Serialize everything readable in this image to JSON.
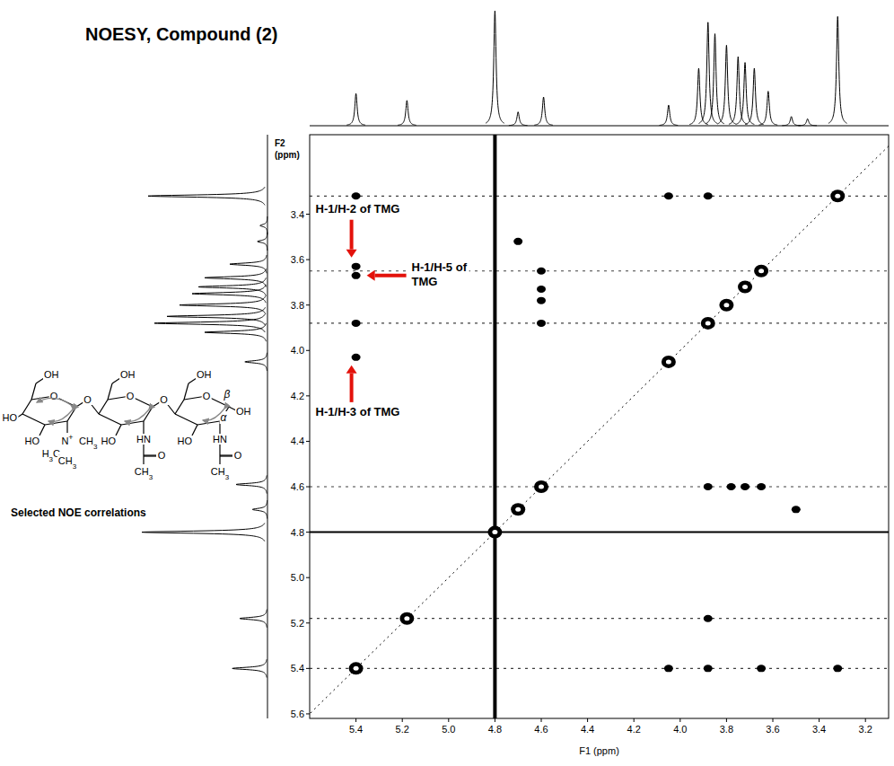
{
  "chart_data": {
    "type": "noesy",
    "title": "NOESY, Compound (2)",
    "x_label": "F1 (ppm)",
    "y_label": "F2 (ppm)",
    "xlim": [
      5.6,
      3.1
    ],
    "xticks": [
      5.4,
      5.2,
      {
        "value": 5,
        "label": "5.0"
      },
      4.8,
      4.6,
      4.4,
      4.2,
      {
        "value": 4,
        "label": "4.0"
      },
      3.8,
      3.6,
      3.4,
      3.2
    ],
    "ylim": [
      3.05,
      5.62
    ],
    "yticks": [
      3.4,
      3.6,
      3.8,
      {
        "value": 4,
        "label": "4.0"
      },
      4.2,
      4.4,
      4.6,
      4.8,
      {
        "value": 5,
        "label": "5.0"
      },
      5.2,
      5.4,
      5.6
    ],
    "peaks": {
      "x": [
        5.4,
        5.18,
        4.8,
        4.7,
        4.6,
        4.05,
        3.88,
        3.8,
        3.72,
        3.65,
        3.32,
        5.4,
        5.4,
        5.4,
        5.4,
        5.4,
        4.7,
        4.6,
        4.6,
        4.6,
        4.6,
        4.05,
        3.88,
        3.65,
        3.32,
        3.88,
        3.88,
        3.78,
        3.72,
        3.65,
        3.5,
        4.05,
        3.88
      ],
      "y": [
        5.4,
        5.18,
        4.8,
        4.7,
        4.6,
        4.05,
        3.88,
        3.8,
        3.72,
        3.65,
        3.32,
        3.63,
        3.67,
        3.88,
        4.03,
        3.32,
        3.52,
        3.65,
        3.73,
        3.78,
        3.88,
        5.4,
        5.4,
        5.4,
        5.4,
        5.18,
        4.6,
        4.6,
        4.6,
        4.6,
        4.7,
        3.32,
        3.32
      ]
    },
    "solvent_peak": 4.8,
    "noise_rows": [
      3.32,
      3.65,
      3.88,
      4.6,
      5.18,
      5.4
    ],
    "projection": {
      "ppm": [
        5.4,
        5.18,
        4.8,
        4.7,
        4.59,
        4.05,
        3.92,
        3.88,
        3.85,
        3.8,
        3.75,
        3.72,
        3.68,
        3.62,
        3.52,
        3.45,
        3.32
      ],
      "height": [
        0.28,
        0.22,
        1.0,
        0.12,
        0.25,
        0.18,
        0.5,
        0.9,
        0.8,
        0.7,
        0.6,
        0.55,
        0.5,
        0.3,
        0.08,
        0.06,
        0.95
      ]
    },
    "annotations": [
      {
        "text": "H-1/H-2 of TMG",
        "x": 5.4,
        "y": 3.63
      },
      {
        "text": "H-1/H-5 of TMG",
        "x": 5.4,
        "y": 3.67
      },
      {
        "text": "H-1/H-3 of TMG",
        "x": 5.4,
        "y": 4.03
      }
    ]
  },
  "structure": {
    "labels": [
      "OH",
      "O",
      "HO",
      "HO",
      "N+",
      "CH3",
      "H3C",
      "CH3",
      "O",
      "OH",
      "O",
      "HO",
      "HN",
      "O",
      "CH3",
      "O",
      "OH",
      "O",
      "HO",
      "HN",
      "O",
      "CH3",
      "OH",
      "β",
      "α"
    ],
    "caption": "Selected NOE correlations"
  }
}
